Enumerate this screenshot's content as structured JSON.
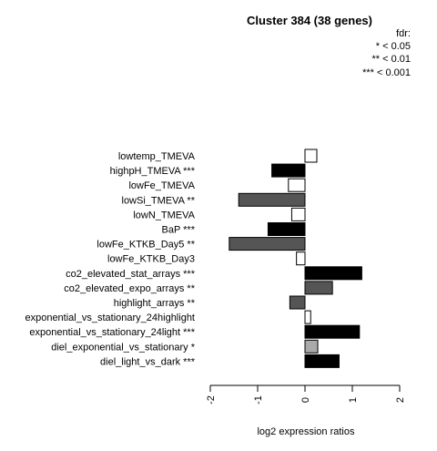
{
  "chart_data": {
    "type": "bar",
    "orientation": "horizontal",
    "title": "Cluster 384 (38 genes)",
    "xlabel": "log2 expression ratios",
    "ylabel": "",
    "xlim": [
      -2,
      2
    ],
    "xticks": [
      "-2",
      "-1",
      "0",
      "1",
      "2"
    ],
    "grid": false,
    "legend": {
      "title": "fdr:",
      "entries": [
        "* < 0.05",
        "** < 0.01",
        "*** < 0.001"
      ],
      "placement": "top-right"
    },
    "categories": [
      "lowtemp_TMEVA",
      "highpH_TMEVA ***",
      "lowFe_TMEVA",
      "lowSi_TMEVA **",
      "lowN_TMEVA",
      "BaP ***",
      "lowFe_KTKB_Day5 **",
      "lowFe_KTKB_Day3",
      "co2_elevated_stat_arrays ***",
      "co2_elevated_expo_arrays **",
      "highlight_arrays **",
      "exponential_vs_stationary_24highlight",
      "exponential_vs_stationary_24light ***",
      "diel_exponential_vs_stationary *",
      "diel_light_vs_dark ***"
    ],
    "values": [
      0.25,
      -0.7,
      -0.35,
      -1.4,
      -0.28,
      -0.78,
      -1.6,
      -0.18,
      1.2,
      0.58,
      -0.32,
      0.12,
      1.15,
      0.27,
      0.72
    ],
    "fill_colors": [
      "#ffffff",
      "#000000",
      "#ffffff",
      "#555555",
      "#ffffff",
      "#000000",
      "#555555",
      "#ffffff",
      "#000000",
      "#555555",
      "#555555",
      "#ffffff",
      "#000000",
      "#aaaaaa",
      "#000000"
    ]
  }
}
